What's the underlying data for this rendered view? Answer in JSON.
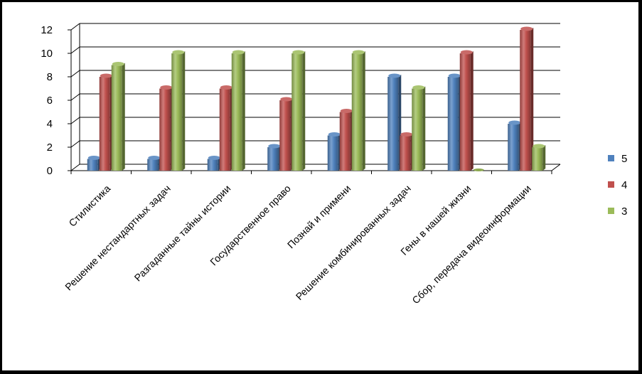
{
  "chart_data": {
    "type": "bar",
    "categories": [
      "Стилистика",
      "Решение нестандартных задач",
      "Разгаданные тайны истории",
      "Государственное право",
      "Познай и примени",
      "Решение комбинированных задач",
      "Гены в нашей жизни",
      "Сбор, передача видеоинформации"
    ],
    "series": [
      {
        "name": "5",
        "values": [
          1,
          1,
          1,
          2,
          3,
          8,
          8,
          4
        ],
        "color": "#4F81BD"
      },
      {
        "name": "4",
        "values": [
          8,
          7,
          7,
          6,
          5,
          3,
          10,
          12
        ],
        "color": "#C0504D"
      },
      {
        "name": "3",
        "values": [
          9,
          10,
          10,
          10,
          10,
          7,
          0,
          2
        ],
        "color": "#9BBB59"
      }
    ],
    "yticks": [
      0,
      2,
      4,
      6,
      8,
      10,
      12
    ],
    "ylim": [
      0,
      12
    ],
    "grid": true,
    "legend": "right",
    "style": "3d-column"
  }
}
